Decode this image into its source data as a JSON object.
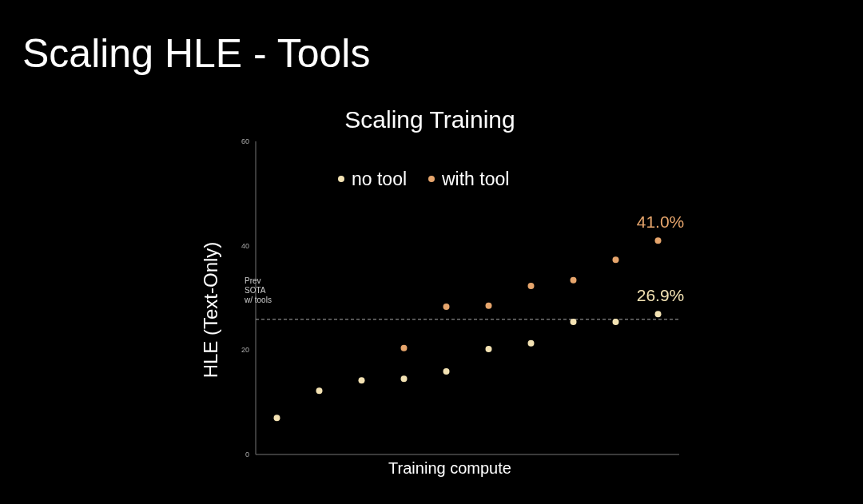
{
  "chart_data": {
    "type": "scatter",
    "title": "Scaling HLE - Tools",
    "subtitle": "Scaling Training",
    "xlabel": "Training compute",
    "ylabel": "HLE (Text-Only)",
    "categories": [
      null,
      null,
      null,
      null,
      null,
      null,
      null,
      null,
      null,
      null
    ],
    "series": [
      {
        "name": "no tool",
        "color": "#f3e2b3",
        "values": [
          7.0,
          12.2,
          14.2,
          14.5,
          15.9,
          20.2,
          21.3,
          25.4,
          25.4,
          26.9
        ],
        "value_labels": [
          null,
          null,
          null,
          null,
          null,
          null,
          null,
          null,
          null,
          "26.9%"
        ]
      },
      {
        "name": "with tool",
        "color": "#e6a56c",
        "values": [
          null,
          null,
          null,
          20.4,
          28.3,
          28.5,
          32.3,
          33.4,
          37.3,
          41.0
        ],
        "value_labels": [
          null,
          null,
          null,
          null,
          null,
          null,
          null,
          null,
          null,
          "41.0%"
        ]
      }
    ],
    "ylim": [
      0,
      60
    ],
    "yticks": [
      0,
      20,
      40,
      60
    ],
    "legend": "top left",
    "marker": "circle",
    "ref_lines": [
      {
        "axis": "y",
        "value": 25.9,
        "label": "Prev\nSOTA\nw/ tools",
        "line_style": "dashed",
        "color": "#aaaaaa"
      }
    ]
  }
}
